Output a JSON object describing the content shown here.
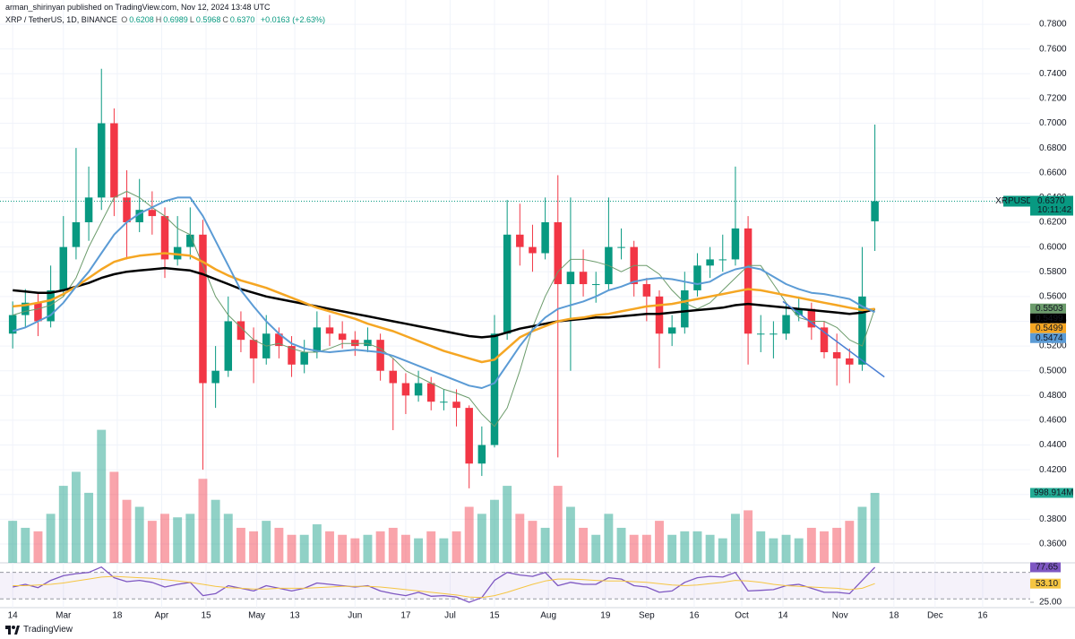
{
  "header": {
    "published": "arman_shirinyan published on TradingView.com, Nov 12, 2024 13:48 UTC",
    "symbol": "XRP / TetherUS, 1D, BINANCE",
    "ohlc": [
      {
        "key": "O",
        "value": "0.6208"
      },
      {
        "key": "H",
        "value": "0.6989"
      },
      {
        "key": "L",
        "value": "0.5968"
      },
      {
        "key": "C",
        "value": "0.6370"
      }
    ],
    "change": "+0.0163 (+2.63%)"
  },
  "footer": {
    "brand": "TradingView"
  },
  "chart_data": {
    "type": "candlestick",
    "x": [
      "2024-02-14",
      "2024-02-18",
      "2024-02-22",
      "2024-02-26",
      "2024-03-01",
      "2024-03-05",
      "2024-03-09",
      "2024-03-13",
      "2024-03-17",
      "2024-03-21",
      "2024-03-25",
      "2024-03-29",
      "2024-04-02",
      "2024-04-06",
      "2024-04-10",
      "2024-04-14",
      "2024-04-18",
      "2024-04-22",
      "2024-04-26",
      "2024-04-30",
      "2024-05-04",
      "2024-05-08",
      "2024-05-12",
      "2024-05-16",
      "2024-05-20",
      "2024-05-24",
      "2024-05-28",
      "2024-06-01",
      "2024-06-05",
      "2024-06-09",
      "2024-06-13",
      "2024-06-17",
      "2024-06-21",
      "2024-06-25",
      "2024-06-29",
      "2024-07-03",
      "2024-07-07",
      "2024-07-11",
      "2024-07-15",
      "2024-07-19",
      "2024-07-23",
      "2024-07-27",
      "2024-07-31",
      "2024-08-04",
      "2024-08-08",
      "2024-08-12",
      "2024-08-16",
      "2024-08-20",
      "2024-08-24",
      "2024-08-28",
      "2024-09-01",
      "2024-09-05",
      "2024-09-09",
      "2024-09-13",
      "2024-09-17",
      "2024-09-21",
      "2024-09-25",
      "2024-09-29",
      "2024-10-03",
      "2024-10-07",
      "2024-10-11",
      "2024-10-15",
      "2024-10-19",
      "2024-10-23",
      "2024-10-27",
      "2024-10-31",
      "2024-11-04",
      "2024-11-08",
      "2024-11-12"
    ],
    "open": [
      0.53,
      0.545,
      0.555,
      0.54,
      0.565,
      0.6,
      0.62,
      0.64,
      0.7,
      0.64,
      0.62,
      0.63,
      0.625,
      0.59,
      0.6,
      0.61,
      0.49,
      0.5,
      0.54,
      0.525,
      0.51,
      0.53,
      0.52,
      0.505,
      0.515,
      0.535,
      0.53,
      0.525,
      0.52,
      0.525,
      0.5,
      0.49,
      0.48,
      0.49,
      0.475,
      0.475,
      0.47,
      0.425,
      0.44,
      0.53,
      0.61,
      0.6,
      0.595,
      0.62,
      0.57,
      0.58,
      0.57,
      0.57,
      0.6,
      0.6,
      0.57,
      0.56,
      0.53,
      0.535,
      0.565,
      0.585,
      0.59,
      0.59,
      0.615,
      0.53,
      0.53,
      0.53,
      0.545,
      0.55,
      0.535,
      0.515,
      0.51,
      0.505,
      0.6208
    ],
    "high": [
      0.556,
      0.566,
      0.562,
      0.585,
      0.625,
      0.68,
      0.665,
      0.744,
      0.712,
      0.662,
      0.655,
      0.645,
      0.632,
      0.625,
      0.632,
      0.622,
      0.52,
      0.56,
      0.548,
      0.535,
      0.545,
      0.535,
      0.528,
      0.525,
      0.548,
      0.545,
      0.54,
      0.532,
      0.535,
      0.53,
      0.51,
      0.498,
      0.5,
      0.495,
      0.485,
      0.485,
      0.472,
      0.455,
      0.545,
      0.638,
      0.635,
      0.618,
      0.64,
      0.658,
      0.64,
      0.598,
      0.58,
      0.64,
      0.615,
      0.605,
      0.575,
      0.565,
      0.545,
      0.58,
      0.595,
      0.6,
      0.61,
      0.665,
      0.625,
      0.545,
      0.54,
      0.555,
      0.56,
      0.555,
      0.54,
      0.53,
      0.518,
      0.6,
      0.6989
    ],
    "low": [
      0.518,
      0.535,
      0.528,
      0.535,
      0.56,
      0.59,
      0.605,
      0.63,
      0.625,
      0.59,
      0.612,
      0.61,
      0.575,
      0.585,
      0.59,
      0.42,
      0.47,
      0.495,
      0.515,
      0.49,
      0.505,
      0.51,
      0.495,
      0.498,
      0.51,
      0.52,
      0.518,
      0.512,
      0.515,
      0.492,
      0.452,
      0.465,
      0.475,
      0.468,
      0.468,
      0.455,
      0.405,
      0.415,
      0.438,
      0.525,
      0.585,
      0.58,
      0.59,
      0.43,
      0.5,
      0.56,
      0.555,
      0.565,
      0.59,
      0.56,
      0.54,
      0.502,
      0.52,
      0.53,
      0.56,
      0.575,
      0.58,
      0.585,
      0.505,
      0.515,
      0.51,
      0.525,
      0.54,
      0.525,
      0.51,
      0.488,
      0.49,
      0.5,
      0.5968
    ],
    "close": [
      0.545,
      0.555,
      0.54,
      0.565,
      0.6,
      0.62,
      0.64,
      0.7,
      0.64,
      0.62,
      0.63,
      0.625,
      0.59,
      0.6,
      0.61,
      0.49,
      0.5,
      0.54,
      0.525,
      0.51,
      0.53,
      0.52,
      0.505,
      0.515,
      0.535,
      0.53,
      0.525,
      0.52,
      0.525,
      0.5,
      0.49,
      0.48,
      0.49,
      0.475,
      0.475,
      0.47,
      0.425,
      0.44,
      0.53,
      0.61,
      0.6,
      0.595,
      0.62,
      0.57,
      0.58,
      0.57,
      0.57,
      0.6,
      0.6,
      0.57,
      0.56,
      0.53,
      0.535,
      0.565,
      0.585,
      0.59,
      0.59,
      0.615,
      0.53,
      0.53,
      0.53,
      0.545,
      0.55,
      0.535,
      0.515,
      0.51,
      0.505,
      0.56,
      0.637
    ],
    "up_color": "#089981",
    "down_color": "#f23645",
    "xlim": [
      "2024-02-10",
      "2024-12-31"
    ],
    "xticks": [
      {
        "value": "2024-02-14",
        "label": "14"
      },
      {
        "value": "2024-03-01",
        "label": "Mar"
      },
      {
        "value": "2024-03-18",
        "label": "18"
      },
      {
        "value": "2024-04-01",
        "label": "Apr"
      },
      {
        "value": "2024-04-15",
        "label": "15"
      },
      {
        "value": "2024-05-01",
        "label": "May"
      },
      {
        "value": "2024-05-13",
        "label": "13"
      },
      {
        "value": "2024-06-01",
        "label": "Jun"
      },
      {
        "value": "2024-06-17",
        "label": "17"
      },
      {
        "value": "2024-07-01",
        "label": "Jul"
      },
      {
        "value": "2024-07-15",
        "label": "15"
      },
      {
        "value": "2024-08-01",
        "label": "Aug"
      },
      {
        "value": "2024-08-19",
        "label": "19"
      },
      {
        "value": "2024-09-01",
        "label": "Sep"
      },
      {
        "value": "2024-09-16",
        "label": "16"
      },
      {
        "value": "2024-10-01",
        "label": "Oct"
      },
      {
        "value": "2024-10-14",
        "label": "14"
      },
      {
        "value": "2024-11-01",
        "label": "Nov"
      },
      {
        "value": "2024-11-18",
        "label": "18"
      },
      {
        "value": "2024-12-01",
        "label": "Dec"
      },
      {
        "value": "2024-12-16",
        "label": "16"
      }
    ],
    "ylim": [
      0.3448,
      0.7996
    ],
    "yticks": [
      {
        "value": 0.36,
        "label": "0.3600"
      },
      {
        "value": 0.38,
        "label": "0.3800"
      },
      {
        "value": 0.4,
        "label": "0.4000"
      },
      {
        "value": 0.42,
        "label": "0.4200"
      },
      {
        "value": 0.44,
        "label": "0.4400"
      },
      {
        "value": 0.46,
        "label": "0.4600"
      },
      {
        "value": 0.48,
        "label": "0.4800"
      },
      {
        "value": 0.5,
        "label": "0.5000"
      },
      {
        "value": 0.52,
        "label": "0.5200"
      },
      {
        "value": 0.54,
        "label": "0.5400"
      },
      {
        "value": 0.56,
        "label": "0.5600"
      },
      {
        "value": 0.58,
        "label": "0.5800"
      },
      {
        "value": 0.6,
        "label": "0.6000"
      },
      {
        "value": 0.62,
        "label": "0.6200"
      },
      {
        "value": 0.64,
        "label": "0.6400"
      },
      {
        "value": 0.66,
        "label": "0.6600"
      },
      {
        "value": 0.68,
        "label": "0.6800"
      },
      {
        "value": 0.7,
        "label": "0.7000"
      },
      {
        "value": 0.72,
        "label": "0.7200"
      },
      {
        "value": 0.74,
        "label": "0.7400"
      },
      {
        "value": 0.76,
        "label": "0.7600"
      },
      {
        "value": 0.78,
        "label": "0.7800"
      }
    ],
    "grid": true,
    "price_badge": {
      "symbol": "XRPUSDT",
      "label": "0.6370",
      "countdown": "10:11:42",
      "color": "#089981"
    },
    "volume": {
      "ylim": [
        0,
        8040
      ],
      "last_label": "998.914M",
      "color": "#22ab94",
      "values": [
        600,
        500,
        450,
        700,
        1100,
        1300,
        1000,
        1900,
        1300,
        900,
        800,
        600,
        700,
        650,
        700,
        1200,
        900,
        700,
        500,
        450,
        600,
        500,
        400,
        400,
        550,
        450,
        400,
        350,
        400,
        450,
        500,
        400,
        350,
        450,
        350,
        450,
        800,
        700,
        900,
        1100,
        700,
        600,
        500,
        1100,
        800,
        500,
        400,
        700,
        500,
        400,
        400,
        600,
        400,
        450,
        450,
        400,
        350,
        700,
        750,
        450,
        350,
        400,
        350,
        500,
        450,
        500,
        600,
        800,
        998.914
      ]
    },
    "series": [
      {
        "color": "#6b9b6b",
        "width": 1,
        "last_label": "0.5503",
        "text_color": "#000000",
        "values": [
          0.545,
          0.548,
          0.55,
          0.553,
          0.56,
          0.575,
          0.6,
          0.62,
          0.64,
          0.645,
          0.64,
          0.632,
          0.625,
          0.615,
          0.61,
          0.585,
          0.56,
          0.545,
          0.535,
          0.525,
          0.52,
          0.522,
          0.518,
          0.515,
          0.515,
          0.518,
          0.522,
          0.522,
          0.522,
          0.518,
          0.51,
          0.5,
          0.495,
          0.49,
          0.485,
          0.482,
          0.478,
          0.465,
          0.455,
          0.47,
          0.5,
          0.535,
          0.56,
          0.58,
          0.59,
          0.59,
          0.588,
          0.585,
          0.58,
          0.585,
          0.585,
          0.578,
          0.565,
          0.555,
          0.55,
          0.555,
          0.565,
          0.575,
          0.585,
          0.585,
          0.57,
          0.555,
          0.543,
          0.54,
          0.54,
          0.535,
          0.525,
          0.52,
          0.5503
        ]
      },
      {
        "color": "#000000",
        "width": 2.5,
        "last_label": "0.5499",
        "text_color": "#ffffff",
        "values": [
          0.565,
          0.564,
          0.563,
          0.563,
          0.565,
          0.568,
          0.571,
          0.575,
          0.578,
          0.58,
          0.581,
          0.582,
          0.583,
          0.582,
          0.581,
          0.578,
          0.574,
          0.57,
          0.566,
          0.563,
          0.56,
          0.558,
          0.556,
          0.554,
          0.552,
          0.55,
          0.548,
          0.546,
          0.544,
          0.542,
          0.54,
          0.538,
          0.536,
          0.534,
          0.532,
          0.53,
          0.528,
          0.527,
          0.528,
          0.531,
          0.534,
          0.536,
          0.538,
          0.54,
          0.541,
          0.542,
          0.543,
          0.543,
          0.544,
          0.545,
          0.546,
          0.546,
          0.547,
          0.548,
          0.549,
          0.55,
          0.551,
          0.553,
          0.554,
          0.553,
          0.552,
          0.551,
          0.55,
          0.549,
          0.548,
          0.547,
          0.546,
          0.547,
          0.5499
        ]
      },
      {
        "color": "#f5a623",
        "width": 2.5,
        "last_label": "0.5499",
        "text_color": "#000000",
        "values": [
          0.552,
          0.553,
          0.555,
          0.557,
          0.562,
          0.568,
          0.575,
          0.582,
          0.588,
          0.591,
          0.593,
          0.594,
          0.595,
          0.594,
          0.593,
          0.588,
          0.582,
          0.577,
          0.573,
          0.57,
          0.567,
          0.563,
          0.559,
          0.555,
          0.551,
          0.548,
          0.545,
          0.542,
          0.538,
          0.535,
          0.532,
          0.528,
          0.524,
          0.52,
          0.516,
          0.513,
          0.51,
          0.507,
          0.509,
          0.518,
          0.527,
          0.532,
          0.536,
          0.54,
          0.542,
          0.543,
          0.545,
          0.546,
          0.548,
          0.55,
          0.552,
          0.553,
          0.554,
          0.556,
          0.558,
          0.56,
          0.562,
          0.564,
          0.566,
          0.565,
          0.563,
          0.561,
          0.559,
          0.557,
          0.555,
          0.553,
          0.551,
          0.549,
          0.5499
        ]
      },
      {
        "color": "#5b9bd5",
        "width": 2,
        "last_label": "0.5474",
        "text_color": "#000000",
        "values": [
          0.532,
          0.535,
          0.54,
          0.545,
          0.555,
          0.568,
          0.58,
          0.595,
          0.61,
          0.62,
          0.627,
          0.632,
          0.637,
          0.64,
          0.64,
          0.625,
          0.605,
          0.585,
          0.565,
          0.552,
          0.54,
          0.53,
          0.522,
          0.518,
          0.516,
          0.515,
          0.516,
          0.517,
          0.516,
          0.515,
          0.512,
          0.508,
          0.504,
          0.5,
          0.496,
          0.492,
          0.488,
          0.486,
          0.49,
          0.505,
          0.52,
          0.533,
          0.543,
          0.55,
          0.553,
          0.556,
          0.56,
          0.565,
          0.568,
          0.572,
          0.574,
          0.575,
          0.574,
          0.572,
          0.57,
          0.572,
          0.578,
          0.582,
          0.584,
          0.582,
          0.576,
          0.57,
          0.566,
          0.563,
          0.562,
          0.56,
          0.558,
          0.552,
          0.5474
        ]
      }
    ],
    "trendline": {
      "x": [
        "2024-10-14",
        "2024-11-15"
      ],
      "values": [
        0.556,
        0.495
      ],
      "color": "#4a7fd4"
    },
    "rsi": {
      "ylim": [
        16.9,
        84.4
      ],
      "yticks": [
        {
          "value": 25,
          "label": "25.00"
        }
      ],
      "bands": [
        30,
        70
      ],
      "series": [
        {
          "color": "#7e57c2",
          "last_label": "77.65",
          "values": [
            48,
            52,
            47,
            58,
            65,
            68,
            70,
            78,
            62,
            56,
            58,
            55,
            48,
            52,
            55,
            35,
            38,
            50,
            46,
            42,
            50,
            46,
            42,
            46,
            54,
            52,
            50,
            48,
            50,
            42,
            38,
            35,
            40,
            34,
            35,
            33,
            25,
            32,
            58,
            70,
            66,
            64,
            70,
            50,
            55,
            52,
            52,
            62,
            60,
            50,
            48,
            40,
            42,
            55,
            62,
            64,
            63,
            70,
            42,
            43,
            44,
            50,
            52,
            46,
            40,
            40,
            38,
            58,
            77.65
          ]
        },
        {
          "color": "#f5c542",
          "last_label": "53.10",
          "values": [
            50,
            50,
            51,
            52,
            54,
            57,
            60,
            63,
            64,
            63,
            62,
            61,
            59,
            57,
            55,
            52,
            49,
            47,
            46,
            45,
            45,
            46,
            46,
            46,
            47,
            48,
            49,
            49,
            49,
            48,
            46,
            44,
            42,
            40,
            38,
            36,
            33,
            32,
            35,
            40,
            46,
            52,
            57,
            60,
            60,
            59,
            58,
            57,
            57,
            56,
            55,
            53,
            51,
            50,
            51,
            53,
            55,
            58,
            57,
            55,
            52,
            50,
            49,
            48,
            47,
            46,
            44,
            46,
            53.1
          ]
        }
      ]
    }
  }
}
